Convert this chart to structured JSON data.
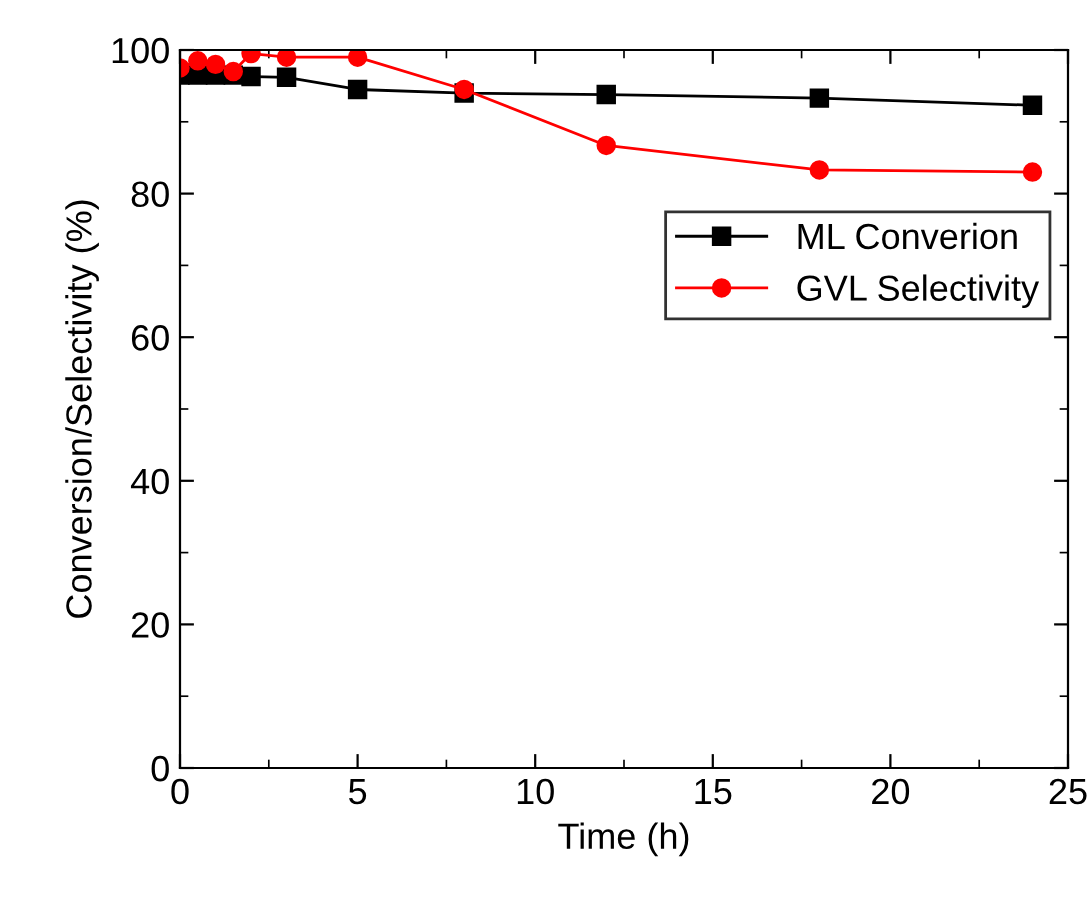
{
  "chart_data": {
    "type": "line",
    "xlabel": "Time (h)",
    "ylabel": "Conversion/Selectivity (%)",
    "x": [
      0,
      0.5,
      1,
      1.5,
      2,
      3,
      5,
      8,
      12,
      18,
      24
    ],
    "series": [
      {
        "name": "ML Converion",
        "color": "#000000",
        "marker": "square",
        "values": [
          96.5,
          96.5,
          96.5,
          96.5,
          96.3,
          96.2,
          94.5,
          94,
          93.8,
          93.3,
          92.3
        ]
      },
      {
        "name": "GVL Selectivity",
        "color": "#ff0000",
        "marker": "circle",
        "values": [
          97.5,
          98.5,
          98,
          97,
          99.5,
          99,
          99,
          94.5,
          86.7,
          83.3,
          83
        ]
      }
    ],
    "xlim": [
      0,
      25
    ],
    "xticks": [
      0,
      5,
      10,
      15,
      20,
      25
    ],
    "ylim": [
      0,
      100
    ],
    "yticks": [
      0,
      20,
      40,
      60,
      80,
      100
    ],
    "grid": false,
    "legend": "right"
  }
}
